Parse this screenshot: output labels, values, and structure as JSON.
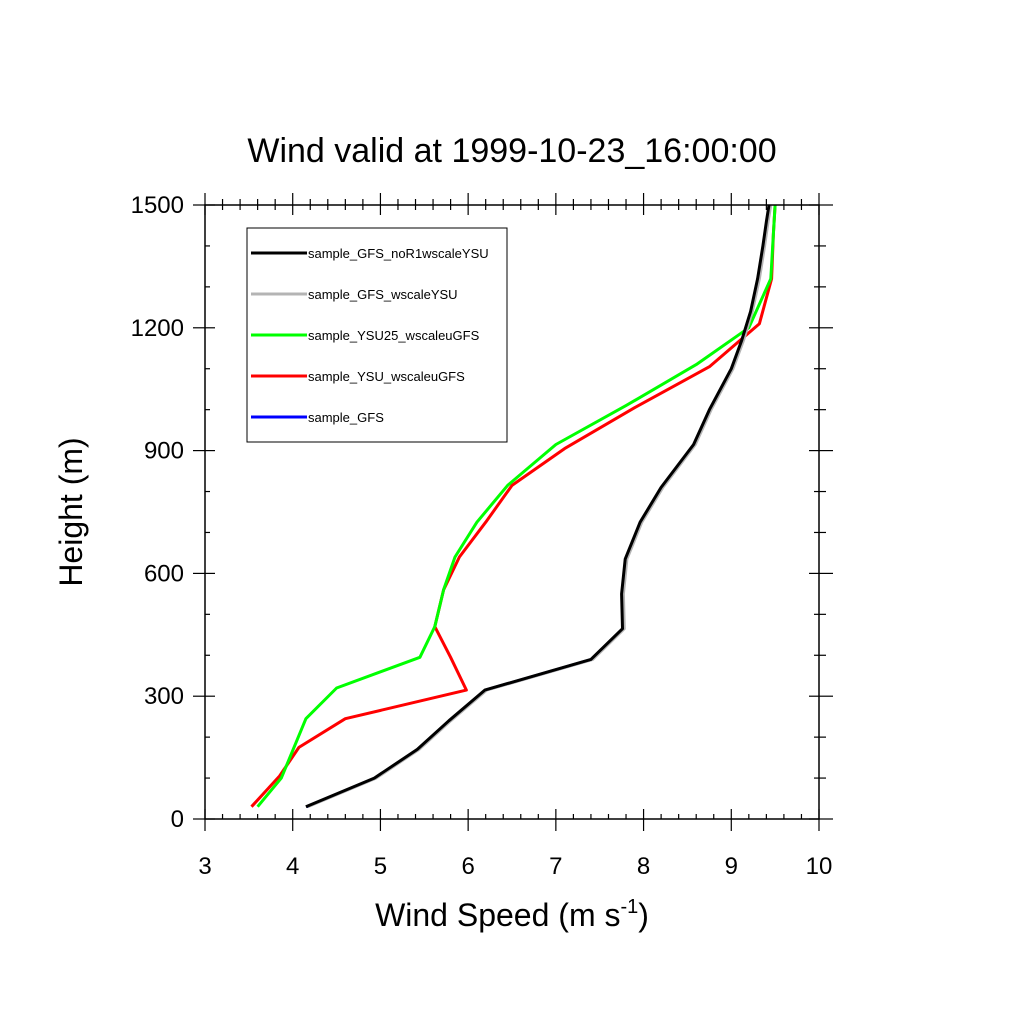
{
  "chart_data": {
    "type": "line",
    "title": "Wind valid at 1999-10-23_16:00:00",
    "xlabel": "Wind Speed (m s",
    "xlabel_sup": "-1",
    "xlabel_end": ")",
    "ylabel": "Height (m)",
    "xlim": [
      3,
      10
    ],
    "ylim": [
      0,
      1500
    ],
    "xticks": [
      "3",
      "4",
      "5",
      "6",
      "7",
      "8",
      "9",
      "10"
    ],
    "yticks": [
      "0",
      "300",
      "600",
      "900",
      "1200",
      "1500"
    ],
    "grid": false,
    "legend_position": "top-left",
    "series": [
      {
        "name": "sample_GFS_noR1wscaleYSU",
        "color": "#000000",
        "x": [
          4.15,
          4.93,
          5.42,
          5.78,
          6.19,
          7.4,
          7.76,
          7.75,
          7.79,
          7.96,
          8.2,
          8.57,
          8.75,
          9.0,
          9.12,
          9.22,
          9.3,
          9.36,
          9.4,
          9.43
        ],
        "y": [
          30,
          100,
          170,
          240,
          315,
          390,
          465,
          550,
          635,
          725,
          810,
          915,
          1000,
          1100,
          1170,
          1240,
          1320,
          1400,
          1460,
          1500
        ]
      },
      {
        "name": "sample_GFS_wscaleYSU",
        "color": "#b4b4b4",
        "x": [
          4.17,
          4.95,
          5.44,
          5.8,
          6.21,
          7.42,
          7.78,
          7.77,
          7.81,
          7.98,
          8.22,
          8.59,
          8.77,
          9.02,
          9.14,
          9.24,
          9.32,
          9.38,
          9.42,
          9.45
        ],
        "y": [
          30,
          100,
          170,
          240,
          315,
          390,
          465,
          550,
          635,
          725,
          810,
          915,
          1000,
          1100,
          1170,
          1240,
          1320,
          1400,
          1460,
          1500
        ]
      },
      {
        "name": "sample_YSU25_wscaleuGFS",
        "color": "#00ff00",
        "x": [
          3.6,
          3.87,
          4.15,
          4.5,
          5.45,
          5.62,
          5.72,
          5.85,
          6.1,
          6.45,
          7.0,
          7.8,
          8.6,
          9.2,
          9.45,
          9.48,
          9.5
        ],
        "y": [
          30,
          100,
          245,
          320,
          395,
          470,
          560,
          640,
          725,
          815,
          915,
          1010,
          1110,
          1200,
          1320,
          1430,
          1500
        ]
      },
      {
        "name": "sample_YSU_wscaleuGFS",
        "color": "#ff0000",
        "x": [
          3.53,
          3.85,
          4.07,
          4.6,
          5.98,
          5.8,
          5.62,
          5.72,
          5.9,
          6.2,
          6.5,
          7.1,
          7.9,
          8.75,
          9.32,
          9.46,
          9.48,
          9.5
        ],
        "y": [
          30,
          105,
          175,
          245,
          315,
          395,
          470,
          560,
          640,
          725,
          815,
          905,
          1005,
          1105,
          1210,
          1320,
          1430,
          1500
        ]
      },
      {
        "name": "sample_GFS",
        "color": "#0000ff",
        "x": [
          4.16,
          4.94,
          5.43,
          5.79,
          6.2,
          7.41,
          7.77,
          7.76,
          7.8,
          7.97,
          8.21,
          8.58,
          8.76,
          9.01,
          9.13,
          9.23,
          9.31,
          9.37,
          9.41,
          9.44
        ],
        "y": [
          30,
          100,
          170,
          240,
          315,
          390,
          465,
          550,
          635,
          725,
          810,
          915,
          1000,
          1100,
          1170,
          1240,
          1320,
          1400,
          1460,
          1500
        ]
      }
    ]
  }
}
